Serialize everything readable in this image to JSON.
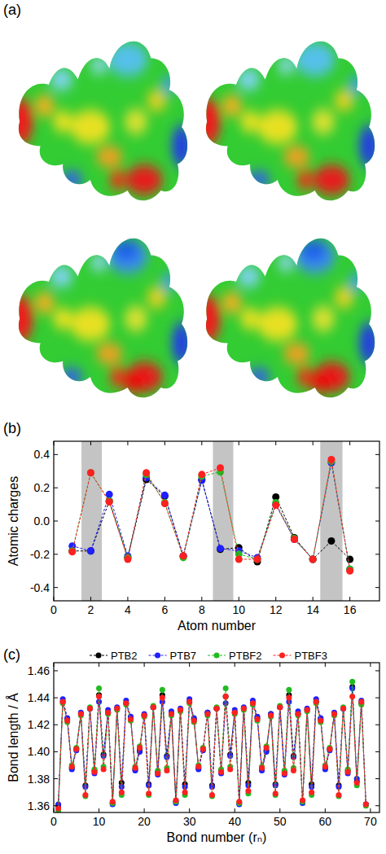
{
  "chart_data": [
    {
      "type": "surface",
      "label": "(a)"
    },
    {
      "type": "line",
      "label": "(b)",
      "x_label": "Atom number",
      "y_label": "Atomic charges",
      "x": [
        1,
        2,
        3,
        4,
        5,
        6,
        7,
        8,
        9,
        10,
        11,
        12,
        13,
        14,
        15,
        16
      ],
      "xlim": [
        0,
        17.6
      ],
      "xticks": [
        0,
        2,
        4,
        6,
        8,
        10,
        12,
        14,
        16
      ],
      "ylim": [
        -0.48,
        0.48
      ],
      "yticks": [
        -0.4,
        -0.2,
        {
          "value": 0,
          "label": "0.0"
        },
        0.2,
        0.4
      ],
      "bands": [
        [
          1.5,
          2.6
        ],
        [
          8.6,
          9.7
        ],
        [
          14.4,
          15.6
        ]
      ],
      "marker": "circle",
      "line_style": "dashed",
      "series": [
        {
          "color": "#000000",
          "values": [
            -0.18,
            -0.18,
            0.12,
            -0.22,
            0.25,
            0.15,
            -0.21,
            0.25,
            -0.17,
            -0.16,
            -0.245,
            0.145,
            -0.1,
            -0.23,
            -0.12,
            -0.23
          ]
        },
        {
          "color": "#1f1fff",
          "values": [
            -0.15,
            -0.18,
            0.16,
            -0.21,
            0.26,
            0.155,
            -0.21,
            0.245,
            -0.165,
            -0.18,
            -0.22,
            0.1,
            -0.11,
            -0.23,
            0.35,
            -0.29
          ]
        },
        {
          "color": "#22bb22",
          "values": [
            -0.18,
            0.29,
            0.12,
            -0.22,
            0.28,
            0.11,
            -0.22,
            0.27,
            0.295,
            -0.2,
            -0.23,
            0.11,
            -0.105,
            -0.23,
            0.36,
            -0.29
          ]
        },
        {
          "color": "#ff2020",
          "values": [
            -0.185,
            0.29,
            0.115,
            -0.23,
            0.29,
            0.105,
            -0.21,
            0.28,
            0.32,
            -0.23,
            -0.23,
            0.095,
            -0.11,
            -0.23,
            0.37,
            -0.3
          ]
        }
      ]
    },
    {
      "type": "line",
      "label": "(c)",
      "x_label": "Bond number (rₙ)",
      "y_label": "Bond length / Å",
      "x": [
        1,
        2,
        3,
        4,
        5,
        6,
        7,
        8,
        9,
        10,
        11,
        12,
        13,
        14,
        15,
        16,
        17,
        18,
        19,
        20,
        21,
        22,
        23,
        24,
        25,
        26,
        27,
        28,
        29,
        30,
        31,
        32,
        33,
        34,
        35,
        36,
        37,
        38,
        39,
        40,
        41,
        42,
        43,
        44,
        45,
        46,
        47,
        48,
        49,
        50,
        51,
        52,
        53,
        54,
        55,
        56,
        57,
        58,
        59,
        60,
        61,
        62,
        63,
        64,
        65,
        66,
        67,
        68,
        69
      ],
      "xlim": [
        0,
        72
      ],
      "xticks": [
        0,
        10,
        20,
        30,
        40,
        50,
        60,
        70
      ],
      "ylim": [
        1.355,
        1.466
      ],
      "yticks": [
        1.36,
        1.38,
        {
          "value": 1.4,
          "label": "1.40"
        },
        1.42,
        1.44,
        1.46
      ],
      "legend": "top",
      "marker": "circle",
      "line_style": "dashed",
      "series": [
        {
          "name": "PTB2",
          "color": "#000000",
          "values": [
            1.36,
            1.437,
            1.424,
            1.388,
            1.402,
            1.428,
            1.375,
            1.432,
            1.386,
            1.442,
            1.398,
            1.429,
            1.362,
            1.432,
            1.377,
            1.436,
            1.425,
            1.387,
            1.401,
            1.427,
            1.376,
            1.433,
            1.385,
            1.442,
            1.397,
            1.428,
            1.363,
            1.431,
            1.376,
            1.437,
            1.424,
            1.388,
            1.402,
            1.429,
            1.375,
            1.432,
            1.386,
            1.441,
            1.398,
            1.429,
            1.362,
            1.432,
            1.377,
            1.436,
            1.425,
            1.387,
            1.401,
            1.428,
            1.376,
            1.433,
            1.385,
            1.442,
            1.397,
            1.428,
            1.363,
            1.431,
            1.376,
            1.437,
            1.424,
            1.388,
            1.402,
            1.428,
            1.375,
            1.432,
            1.386,
            1.448,
            1.378,
            1.436,
            1.361
          ]
        },
        {
          "name": "PTB7",
          "color": "#1f1fff",
          "values": [
            1.361,
            1.439,
            1.425,
            1.387,
            1.401,
            1.429,
            1.374,
            1.432,
            1.384,
            1.437,
            1.397,
            1.431,
            1.361,
            1.433,
            1.374,
            1.438,
            1.426,
            1.386,
            1.4,
            1.428,
            1.375,
            1.433,
            1.383,
            1.437,
            1.396,
            1.43,
            1.362,
            1.432,
            1.374,
            1.439,
            1.425,
            1.387,
            1.401,
            1.429,
            1.374,
            1.432,
            1.384,
            1.436,
            1.397,
            1.431,
            1.361,
            1.433,
            1.375,
            1.438,
            1.426,
            1.386,
            1.4,
            1.428,
            1.375,
            1.433,
            1.383,
            1.437,
            1.396,
            1.43,
            1.362,
            1.432,
            1.374,
            1.439,
            1.425,
            1.387,
            1.401,
            1.429,
            1.374,
            1.432,
            1.384,
            1.447,
            1.38,
            1.438,
            1.361
          ]
        },
        {
          "name": "PTBF2",
          "color": "#22bb22",
          "values": [
            1.356,
            1.436,
            1.422,
            1.39,
            1.403,
            1.427,
            1.367,
            1.433,
            1.387,
            1.447,
            1.389,
            1.428,
            1.362,
            1.431,
            1.368,
            1.435,
            1.423,
            1.389,
            1.404,
            1.426,
            1.368,
            1.434,
            1.386,
            1.446,
            1.388,
            1.427,
            1.363,
            1.43,
            1.368,
            1.436,
            1.422,
            1.39,
            1.403,
            1.427,
            1.367,
            1.433,
            1.387,
            1.447,
            1.389,
            1.428,
            1.362,
            1.431,
            1.369,
            1.435,
            1.423,
            1.389,
            1.404,
            1.426,
            1.368,
            1.434,
            1.386,
            1.446,
            1.388,
            1.427,
            1.363,
            1.43,
            1.368,
            1.436,
            1.422,
            1.39,
            1.403,
            1.427,
            1.367,
            1.433,
            1.387,
            1.452,
            1.375,
            1.435,
            1.36
          ]
        },
        {
          "name": "PTBF3",
          "color": "#ff2020",
          "values": [
            1.358,
            1.437,
            1.423,
            1.389,
            1.402,
            1.428,
            1.368,
            1.432,
            1.385,
            1.441,
            1.387,
            1.429,
            1.363,
            1.432,
            1.37,
            1.436,
            1.424,
            1.388,
            1.403,
            1.427,
            1.369,
            1.433,
            1.384,
            1.44,
            1.386,
            1.428,
            1.364,
            1.431,
            1.37,
            1.437,
            1.423,
            1.389,
            1.402,
            1.428,
            1.368,
            1.432,
            1.385,
            1.441,
            1.387,
            1.429,
            1.363,
            1.432,
            1.371,
            1.436,
            1.424,
            1.388,
            1.403,
            1.427,
            1.369,
            1.433,
            1.384,
            1.44,
            1.386,
            1.428,
            1.364,
            1.431,
            1.37,
            1.437,
            1.423,
            1.389,
            1.402,
            1.428,
            1.368,
            1.432,
            1.385,
            1.441,
            1.377,
            1.437,
            1.361
          ]
        }
      ]
    }
  ]
}
